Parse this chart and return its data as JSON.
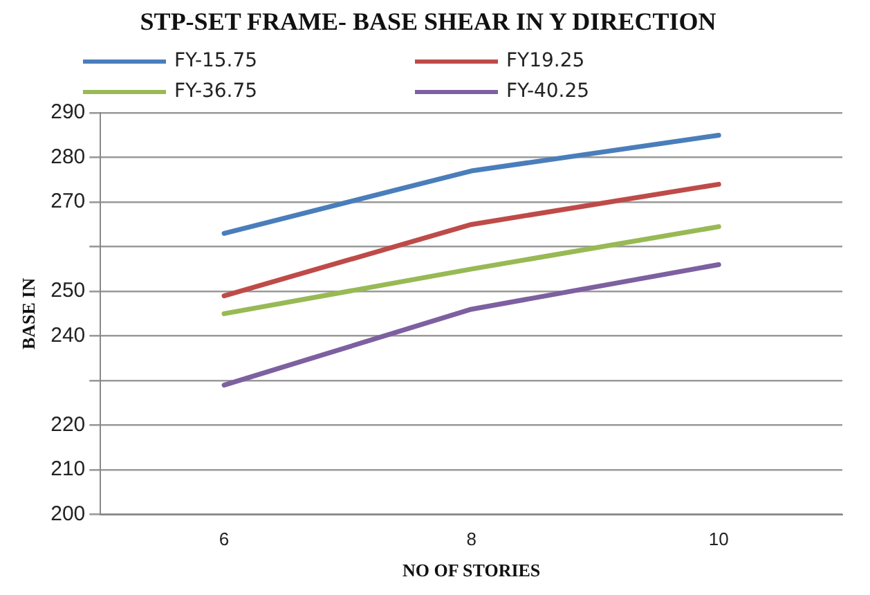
{
  "chart_data": {
    "type": "line",
    "title": "STP-SET FRAME- BASE SHEAR IN Y DIRECTION",
    "xlabel": "NO OF STORIES",
    "ylabel": "BASE IN",
    "categories": [
      "6",
      "8",
      "10"
    ],
    "series": [
      {
        "name": "FY-15.75",
        "color": "#4a7ebb",
        "values": [
          263,
          277,
          285
        ]
      },
      {
        "name": "FY19.25",
        "color": "#be4b48",
        "values": [
          249,
          265,
          274
        ]
      },
      {
        "name": "FY-36.75",
        "color": "#98b954",
        "values": [
          245,
          255,
          264.5
        ]
      },
      {
        "name": "FY-40.25",
        "color": "#7d60a0",
        "values": [
          229,
          246,
          256
        ]
      }
    ],
    "ylim": [
      200,
      290
    ],
    "yticks": [
      200,
      210,
      220,
      {
        "value": 230,
        "label": null
      },
      240,
      250,
      {
        "value": 260,
        "label": null
      },
      270,
      280,
      290
    ],
    "grid": "y",
    "legend": "top",
    "marker": "none",
    "line_style": "solid"
  }
}
